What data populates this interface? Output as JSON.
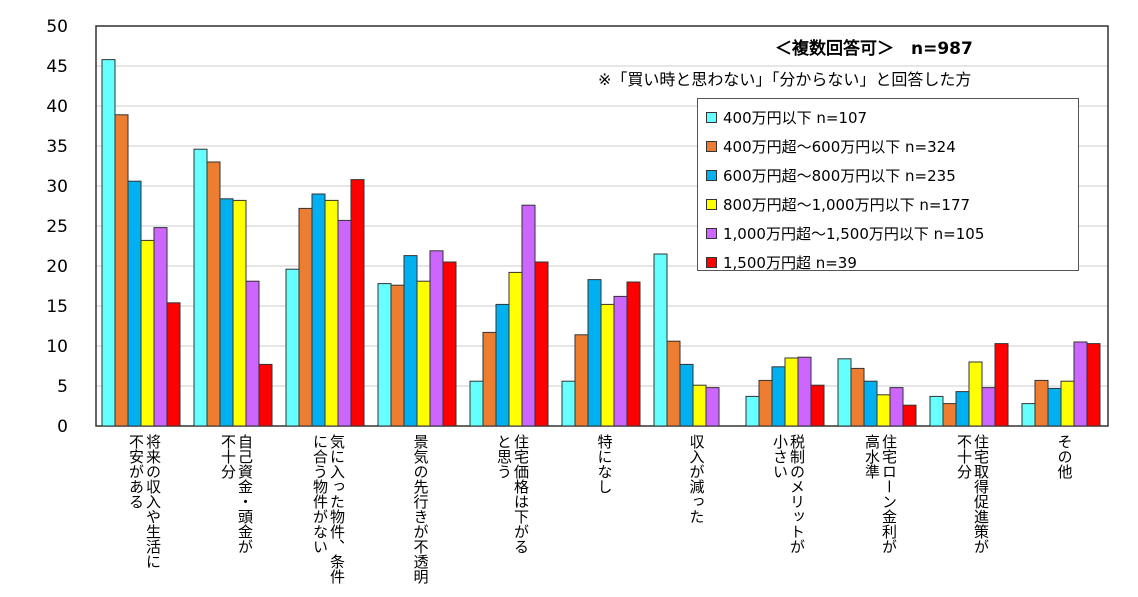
{
  "chart_data": {
    "type": "bar",
    "title": "＜複数回答可＞　n=987",
    "subtitle": "※「買い時と思わない」「分からない」と回答した方",
    "ylim": [
      0,
      50
    ],
    "yticks": [
      0,
      5,
      10,
      15,
      20,
      25,
      30,
      35,
      40,
      45,
      50
    ],
    "grid": true,
    "legend_position": "top-right",
    "categories": [
      "将来の収入や生活に\n不安がある",
      "自己資金・頭金が\n不十分",
      "気に入った物件、条件\nに合う物件がない",
      "景気の先行きが不透明",
      "住宅価格は下がる\nと思う",
      "特になし",
      "収入が減った",
      "税制のメリットが\n小さい",
      "住宅ローン金利が\n高水準",
      "住宅取得促進策が\n不十分",
      "その他"
    ],
    "series": [
      {
        "name": "400万円以下  n=107",
        "color": "#66FFFF",
        "values": [
          45.8,
          34.6,
          19.6,
          17.8,
          5.6,
          5.6,
          21.5,
          3.7,
          8.4,
          3.7,
          2.8
        ]
      },
      {
        "name": "400万円超～600万円以下  n=324",
        "color": "#ED7D31",
        "values": [
          38.9,
          33.0,
          27.2,
          17.6,
          11.7,
          11.4,
          10.6,
          5.7,
          7.2,
          2.8,
          5.7
        ]
      },
      {
        "name": "600万円超～800万円以下  n=235",
        "color": "#00B0F0",
        "values": [
          30.6,
          28.4,
          29.0,
          21.3,
          15.2,
          18.3,
          7.7,
          7.4,
          5.6,
          4.3,
          4.7
        ]
      },
      {
        "name": "800万円超～1,000万円以下  n=177",
        "color": "#FFFF00",
        "values": [
          23.2,
          28.2,
          28.2,
          18.1,
          19.2,
          15.2,
          5.1,
          8.5,
          3.9,
          8.0,
          5.6
        ]
      },
      {
        "name": "1,000万円超～1,500万円以下  n=105",
        "color": "#CC66FF",
        "values": [
          24.8,
          18.1,
          25.7,
          21.9,
          27.6,
          16.2,
          4.8,
          8.6,
          4.8,
          4.8,
          10.5
        ]
      },
      {
        "name": "1,500万円超  n=39",
        "color": "#FF0000",
        "values": [
          15.4,
          7.7,
          30.8,
          20.5,
          20.5,
          18.0,
          0,
          5.1,
          2.6,
          10.3,
          10.3
        ]
      }
    ]
  }
}
